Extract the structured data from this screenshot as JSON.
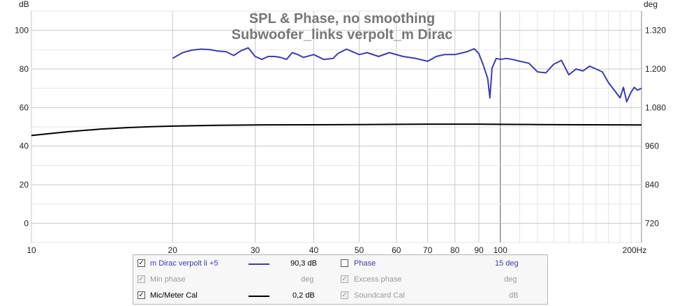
{
  "chart_data": {
    "type": "line",
    "title": "SPL & Phase, no smoothing",
    "subtitle": "Subwoofer_links verpolt_m Dirac",
    "xscale": "log",
    "xlim": [
      10,
      200
    ],
    "x_tick_labels": [
      "10",
      "20",
      "30",
      "40",
      "50",
      "60",
      "70",
      "80",
      "90",
      "100",
      "200Hz"
    ],
    "x_ticks": [
      10,
      20,
      30,
      40,
      50,
      60,
      70,
      80,
      90,
      100,
      200
    ],
    "ylabel_left": "dB",
    "ylim_left": [
      -10,
      110
    ],
    "y_ticks_left": [
      0,
      20,
      40,
      60,
      80,
      100
    ],
    "ylabel_right": "deg",
    "y_tick_labels_right": [
      "720",
      "840",
      "960",
      "1.080",
      "1.200",
      "1.320"
    ],
    "grid": true,
    "series": [
      {
        "name": "m Dirac verpolt li +5",
        "color": "#3c3cb4",
        "x": [
          20,
          21,
          22,
          23,
          24,
          25,
          26,
          27,
          28,
          29,
          30,
          31,
          32,
          33,
          34,
          35,
          36,
          37,
          38,
          40,
          42,
          44,
          45,
          47,
          50,
          52,
          55,
          58,
          62,
          66,
          70,
          73,
          76,
          80,
          85,
          88,
          90,
          92,
          94,
          95,
          96,
          98,
          100,
          103,
          106,
          110,
          115,
          120,
          125,
          130,
          135,
          140,
          145,
          150,
          155,
          160,
          165,
          170,
          175,
          180,
          183,
          186,
          190,
          193,
          196,
          200
        ],
        "values": [
          85.5,
          88.5,
          89.8,
          90.3,
          90.1,
          89.3,
          89.0,
          87.0,
          89.5,
          91.0,
          86.5,
          85.0,
          86.5,
          86.5,
          86.0,
          85.0,
          88.5,
          87.5,
          86.0,
          87.5,
          85.0,
          85.5,
          88.0,
          90.3,
          87.5,
          88.5,
          86.5,
          88.5,
          86.5,
          85.5,
          84.0,
          86.5,
          87.5,
          87.5,
          89.0,
          90.5,
          88.0,
          82.0,
          75.0,
          65.0,
          80.5,
          85.5,
          85.0,
          85.5,
          85.0,
          84.0,
          83.0,
          78.5,
          78.0,
          82.5,
          84.5,
          77.0,
          80.0,
          79.0,
          81.5,
          80.0,
          78.5,
          73.0,
          69.0,
          65.0,
          70.5,
          63.0,
          68.0,
          70.5,
          69.0,
          70.0
        ]
      },
      {
        "name": "Mic/Meter Cal",
        "color": "#000000",
        "x": [
          10,
          12,
          14,
          16,
          18,
          20,
          25,
          30,
          40,
          50,
          60,
          70,
          80,
          90,
          100,
          120,
          150,
          200
        ],
        "values": [
          45.5,
          47.5,
          48.8,
          49.6,
          50.1,
          50.4,
          50.8,
          51.0,
          51.1,
          51.2,
          51.3,
          51.4,
          51.4,
          51.4,
          51.3,
          51.2,
          51.1,
          51.0
        ]
      }
    ]
  },
  "legend": {
    "rows": [
      {
        "checked": "✓",
        "label": "m Dirac verpolt li +5",
        "value": "90,3 dB",
        "phase_label": "Phase",
        "phase_value": "15 deg"
      },
      {
        "checked": "✓",
        "label": "Min phase",
        "value": "deg",
        "phase_label": "Excess phase",
        "phase_value": "deg"
      },
      {
        "checked": "✓",
        "label": "Mic/Meter Cal",
        "value": "0,2 dB",
        "phase_label": "Soundcard Cal",
        "phase_value": "dB"
      }
    ]
  }
}
